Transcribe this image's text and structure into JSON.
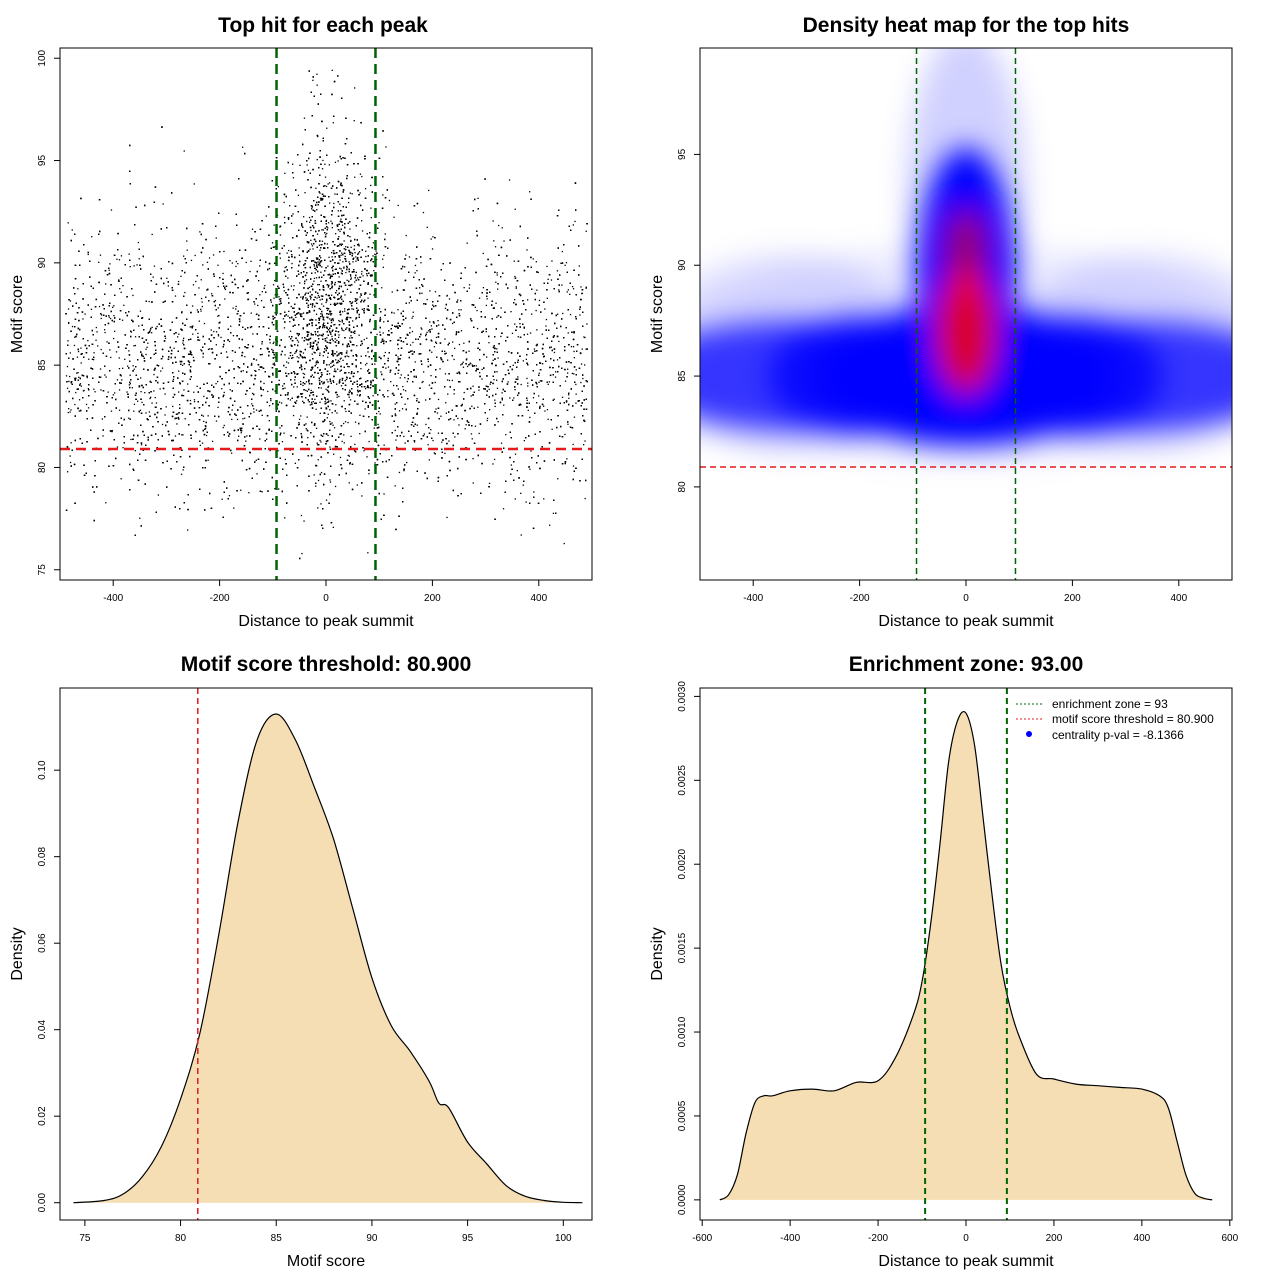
{
  "chart_data": [
    {
      "type": "scatter",
      "title": "Top hit for each peak",
      "xlabel": "Distance to peak summit",
      "ylabel": "Motif score",
      "xlim": [
        -500,
        500
      ],
      "ylim": [
        74.5,
        100.5
      ],
      "xticks": [
        -400,
        -200,
        0,
        200,
        400
      ],
      "yticks": [
        75,
        80,
        85,
        90,
        95,
        100
      ],
      "grid": false,
      "point_color": "#000000",
      "approx_point_count": 12000,
      "distribution": {
        "background": {
          "x_range": [
            -490,
            490
          ],
          "score_mean": 85.2,
          "score_sd": 3.2
        },
        "central_peak": {
          "x_center": 0,
          "x_sd": 45,
          "score_mean": 88.5,
          "score_sd": 3.8
        }
      },
      "vlines": [
        {
          "x": -93,
          "color": "#006400",
          "style": "dashed"
        },
        {
          "x": 93,
          "color": "#006400",
          "style": "dashed"
        }
      ],
      "hlines": [
        {
          "y": 80.9,
          "color": "#e41a1c",
          "style": "dashed"
        }
      ]
    },
    {
      "type": "heatmap",
      "title": "Density heat map for the top hits",
      "xlabel": "Distance to peak summit",
      "ylabel": "Motif score",
      "xlim": [
        -500,
        500
      ],
      "ylim": [
        75.8,
        99.8
      ],
      "xticks": [
        -400,
        -200,
        0,
        200,
        400
      ],
      "yticks": [
        80,
        85,
        90,
        95
      ],
      "grid": false,
      "colors": {
        "low": "#ffffff",
        "mid": "#0000ff",
        "high": "#ff0000"
      },
      "vlines": [
        {
          "x": -93,
          "color": "#006400",
          "style": "dashed"
        },
        {
          "x": 93,
          "color": "#006400",
          "style": "dashed"
        }
      ],
      "hlines": [
        {
          "y": 80.9,
          "color": "#e41a1c",
          "style": "dashed"
        }
      ]
    },
    {
      "type": "area",
      "title": "Motif score threshold: 80.900",
      "xlabel": "Motif score",
      "ylabel": "Density",
      "xlim": [
        73.7,
        101.5
      ],
      "ylim": [
        -0.004,
        0.119
      ],
      "xticks": [
        75,
        80,
        85,
        90,
        95,
        100
      ],
      "yticks": [
        0.0,
        0.02,
        0.04,
        0.06,
        0.08,
        0.1
      ],
      "ytick_labels": [
        "0.00",
        "0.02",
        "0.04",
        "0.06",
        "0.08",
        "0.10"
      ],
      "grid": false,
      "fill_color": "#f5deb3",
      "x": [
        74.4,
        76,
        77,
        78,
        79,
        80,
        81,
        82,
        83,
        84,
        85,
        86,
        87,
        88,
        89,
        90,
        91,
        92,
        93,
        93.5,
        94,
        95,
        96,
        97,
        98,
        99,
        100,
        101
      ],
      "y": [
        0.0,
        0.0005,
        0.002,
        0.006,
        0.013,
        0.024,
        0.039,
        0.062,
        0.088,
        0.107,
        0.113,
        0.107,
        0.096,
        0.084,
        0.068,
        0.052,
        0.041,
        0.035,
        0.028,
        0.023,
        0.022,
        0.014,
        0.009,
        0.004,
        0.0015,
        0.0005,
        0.0001,
        0.0
      ],
      "vlines": [
        {
          "x": 80.9,
          "color": "#e41a1c",
          "style": "dashed"
        }
      ]
    },
    {
      "type": "area",
      "title": "Enrichment zone: 93.00",
      "xlabel": "Distance to peak summit",
      "ylabel": "Density",
      "xlim": [
        -605,
        605
      ],
      "ylim": [
        -0.00012,
        0.00305
      ],
      "xticks": [
        -600,
        -400,
        -200,
        0,
        200,
        400,
        600
      ],
      "yticks": [
        0.0,
        0.0005,
        0.001,
        0.0015,
        0.002,
        0.0025,
        0.003
      ],
      "ytick_labels": [
        "0.0000",
        "0.0005",
        "0.0010",
        "0.0015",
        "0.0020",
        "0.0025",
        "0.0030"
      ],
      "grid": false,
      "fill_color": "#f5deb3",
      "x": [
        -560,
        -540,
        -520,
        -500,
        -480,
        -460,
        -440,
        -400,
        -350,
        -300,
        -250,
        -200,
        -160,
        -120,
        -100,
        -80,
        -60,
        -40,
        -20,
        0,
        20,
        40,
        60,
        80,
        100,
        120,
        160,
        200,
        250,
        300,
        350,
        400,
        440,
        460,
        480,
        500,
        520,
        540,
        560
      ],
      "y": [
        0.0,
        3e-05,
        0.00015,
        0.0004,
        0.00058,
        0.00062,
        0.00062,
        0.00065,
        0.00066,
        0.00065,
        0.0007,
        0.00071,
        0.00085,
        0.0011,
        0.0013,
        0.00165,
        0.0021,
        0.0026,
        0.00285,
        0.0029,
        0.0027,
        0.00225,
        0.0018,
        0.0014,
        0.00115,
        0.00098,
        0.00075,
        0.00072,
        0.00069,
        0.00068,
        0.00067,
        0.00066,
        0.00062,
        0.00055,
        0.00035,
        0.00015,
        4e-05,
        1e-05,
        0.0
      ],
      "vlines": [
        {
          "x": -93,
          "color": "#006400",
          "style": "dashed"
        },
        {
          "x": 93,
          "color": "#006400",
          "style": "dashed"
        }
      ],
      "legend": {
        "position": "top-right",
        "entries": [
          {
            "label": "enrichment zone = 93",
            "color": "#006400",
            "marker": "dotted-line"
          },
          {
            "label": "motif score threshold = 80.900",
            "color": "#e41a1c",
            "marker": "dotted-line"
          },
          {
            "label": "centrality p-val = -8.1366",
            "color": "#0000ff",
            "marker": "point"
          }
        ]
      }
    }
  ]
}
